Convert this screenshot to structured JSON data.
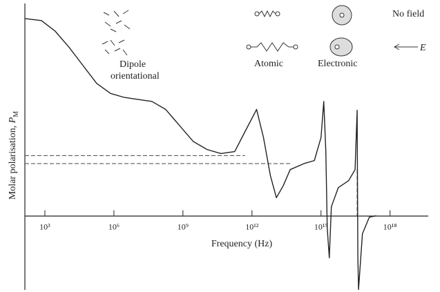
{
  "chart_data": {
    "type": "line",
    "x_label": "Frequency (Hz)",
    "y_label": "Molar polarisation,",
    "y_label_symbol": "P",
    "y_label_subscript": "M",
    "x_scale": "log",
    "xlim": [
      135,
      1e+19
    ],
    "ylim": [
      -37,
      100
    ],
    "xticks": [
      {
        "value": 1000,
        "label": "10³"
      },
      {
        "value": 1000000.0,
        "label": "10⁶"
      },
      {
        "value": 1000000000.0,
        "label": "10⁹"
      },
      {
        "value": 1000000000000.0,
        "label": "10¹²"
      },
      {
        "value": 1000000000000000.0,
        "label": "10¹⁵"
      },
      {
        "value": 1e+18,
        "label": "10¹⁸"
      }
    ],
    "grid": false,
    "color": "#222222",
    "x": [
      135,
      708,
      2818,
      11220,
      44670,
      177800,
      707900,
      2818000.0,
      11220000.0,
      44670000.0,
      177800000.0,
      707900000.0,
      2818000000.0,
      11220000000.0,
      44670000000.0,
      177800000000.0,
      501200000000.0,
      1585000000000.0,
      3162000000000.0,
      6310000000000.0,
      11480000000000.0,
      22910000000000.0,
      45710000000000.0,
      182000000000000.0,
      512900000000000.0,
      1000000000000000.0,
      1318000000000000.0,
      1622000000000000.0,
      1862000000000000.0,
      2291000000000000.0,
      2818000000000000.0,
      5623000000000000.0,
      1.585e+16,
      3.02e+16,
      3.715e+16,
      3.981e+16,
      4.266e+16,
      6.31e+16,
      1.259e+17,
      2.512e+17
    ],
    "values": [
      98.3,
      97.3,
      92,
      84,
      75,
      66,
      61,
      59,
      58,
      57,
      53,
      45,
      37,
      33,
      31,
      32,
      42,
      53,
      39,
      20,
      9,
      15,
      23,
      26,
      27.5,
      39,
      57,
      32,
      -6,
      -21,
      4.5,
      14,
      17.5,
      23,
      52.6,
      -19.6,
      -36.8,
      -9,
      -0.7,
      0
    ],
    "dashed_lines": [
      {
        "x": [
          135,
          501200000000.0
        ],
        "y": [
          30,
          30
        ]
      },
      {
        "x": [
          135,
          45710000000000.0
        ],
        "y": [
          26,
          26
        ]
      },
      {
        "x": [
          3.715e+16,
          3.715e+16
        ],
        "y": [
          23,
          0
        ]
      }
    ],
    "annotations": [
      "Dipole",
      "orientational",
      "Atomic",
      "Electronic",
      "No field",
      "E"
    ]
  }
}
